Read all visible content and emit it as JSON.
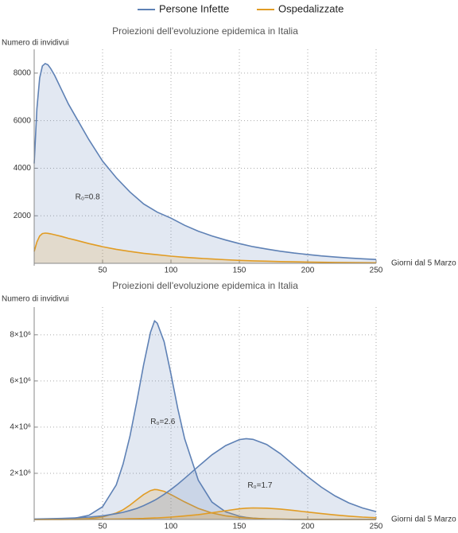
{
  "chart_data": [
    {
      "type": "area",
      "title": "Proiezioni dell'evoluzione epidemica in Italia",
      "y_label": "Numero di invidivui",
      "x_label": "Giorni dal 5 Marzo",
      "x": [
        0,
        2,
        4,
        6,
        8,
        10,
        12,
        15,
        20,
        25,
        30,
        40,
        50,
        60,
        70,
        80,
        90,
        100,
        110,
        120,
        130,
        140,
        150,
        160,
        170,
        180,
        190,
        200,
        210,
        220,
        230,
        240,
        250
      ],
      "series": [
        {
          "name": "Persone Infette",
          "color": "#5e81b5",
          "values": [
            4200,
            6500,
            7800,
            8300,
            8400,
            8350,
            8200,
            7900,
            7300,
            6700,
            6200,
            5200,
            4300,
            3600,
            3000,
            2500,
            2150,
            1900,
            1600,
            1350,
            1150,
            980,
            830,
            700,
            600,
            510,
            430,
            370,
            310,
            265,
            225,
            190,
            160
          ]
        },
        {
          "name": "Ospedalizzate",
          "color": "#e19c24",
          "values": [
            500,
            900,
            1150,
            1250,
            1270,
            1260,
            1240,
            1200,
            1130,
            1050,
            980,
            830,
            700,
            590,
            500,
            420,
            360,
            300,
            255,
            215,
            180,
            150,
            125,
            105,
            90,
            75,
            63,
            53,
            45,
            38,
            32,
            27,
            23
          ]
        }
      ],
      "annotations": [
        "R₀=0.8"
      ],
      "xlim": [
        0,
        250
      ],
      "xticks": [
        50,
        100,
        150,
        200,
        250
      ],
      "ylim": [
        0,
        9000
      ],
      "yticks": [
        2000,
        4000,
        6000,
        8000
      ],
      "grid": true
    },
    {
      "type": "area",
      "title": "Proiezioni dell'evoluzione epidemica in Italia",
      "y_label": "Numero di invidivui",
      "x_label": "Giorni dal 5 Marzo",
      "x": [
        0,
        10,
        20,
        30,
        40,
        50,
        60,
        65,
        70,
        75,
        80,
        85,
        88,
        90,
        95,
        100,
        105,
        110,
        120,
        130,
        140,
        150,
        155,
        160,
        170,
        180,
        190,
        200,
        210,
        220,
        230,
        240,
        250
      ],
      "series": [
        {
          "color": "#5e81b5",
          "values": [
            2000,
            6000,
            20000,
            60000,
            180000,
            550000,
            1500000,
            2400000,
            3600000,
            5100000,
            6700000,
            8100000,
            8600000,
            8500000,
            7700000,
            6300000,
            4800000,
            3500000,
            1700000,
            750000,
            330000,
            140000,
            90000,
            60000,
            25000,
            10000,
            4000,
            1500,
            600,
            250,
            100,
            40,
            15
          ]
        },
        {
          "color": "#e19c24",
          "values": [
            0,
            1000,
            5000,
            15000,
            40000,
            110000,
            280000,
            420000,
            620000,
            850000,
            1080000,
            1250000,
            1300000,
            1290000,
            1220000,
            1080000,
            920000,
            760000,
            480000,
            280000,
            160000,
            90000,
            65000,
            50000,
            27000,
            14000,
            7000,
            3500,
            1800,
            900,
            450,
            220,
            110
          ]
        },
        {
          "color": "#5e81b5",
          "values": [
            20000,
            30000,
            45000,
            70000,
            105000,
            160000,
            250000,
            310000,
            390000,
            480000,
            600000,
            740000,
            830000,
            900000,
            1090000,
            1300000,
            1530000,
            1780000,
            2300000,
            2800000,
            3200000,
            3460000,
            3500000,
            3470000,
            3250000,
            2850000,
            2350000,
            1850000,
            1400000,
            1020000,
            720000,
            500000,
            340000
          ]
        },
        {
          "color": "#e19c24",
          "values": [
            0,
            2000,
            3000,
            5000,
            8000,
            12000,
            19000,
            24000,
            30000,
            37000,
            46000,
            57000,
            64000,
            70000,
            86000,
            105000,
            128000,
            153000,
            210000,
            290000,
            380000,
            460000,
            490000,
            500000,
            490000,
            450000,
            390000,
            320000,
            255000,
            195000,
            145000,
            105000,
            75000
          ]
        }
      ],
      "annotations": [
        "R₀=2.6",
        "R₀=1.7"
      ],
      "xlim": [
        0,
        250
      ],
      "xticks": [
        50,
        100,
        150,
        200,
        250
      ],
      "ylim": [
        0,
        9200000
      ],
      "yticks": [
        {
          "value": 2000000,
          "label": "2×10⁶"
        },
        {
          "value": 4000000,
          "label": "4×10⁶"
        },
        {
          "value": 6000000,
          "label": "6×10⁶"
        },
        {
          "value": 8000000,
          "label": "8×10⁶"
        }
      ],
      "grid": true
    }
  ]
}
